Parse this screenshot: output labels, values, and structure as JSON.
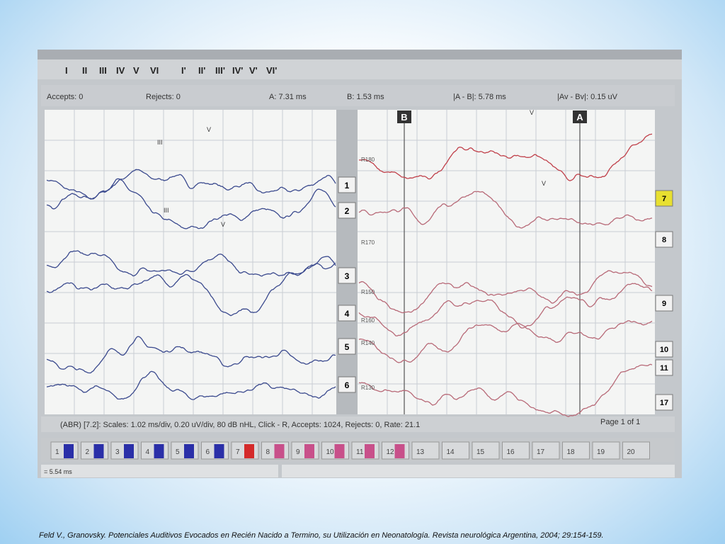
{
  "toolbar": {
    "buttons": [
      "I",
      "II",
      "III",
      "IV",
      "V",
      "VI",
      "I'",
      "II'",
      "III'",
      "IV'",
      "V'",
      "VI'"
    ]
  },
  "info_bar": {
    "accepts": "Accepts: 0",
    "rejects": "Rejects: 0",
    "a": "A: 7.31 ms",
    "b": "B: 1.53 ms",
    "a_minus_b": "|A - B|: 5.78 ms",
    "av_minus_bv": "|Av - Bv|: 0.15 uV"
  },
  "cursors": [
    "B",
    "A"
  ],
  "left_channels": [
    "1",
    "2",
    "3",
    "4",
    "5",
    "6"
  ],
  "right_channels": [
    "7",
    "8",
    "9",
    "10",
    "11",
    "17"
  ],
  "trace_labels": [
    "R180",
    "R170",
    "R150",
    "R160",
    "R140",
    "R130"
  ],
  "peak_labels": [
    "III",
    "V",
    "III",
    "V",
    "V",
    "V"
  ],
  "status": "(ABR) [7.2]: Scales: 1.02 ms/div, 0.20 uV/div, 80 dB nHL, Click - R, Accepts: 1024, Rejects: 0, Rate: 21.1",
  "page": "Page 1 of 1",
  "channel_buttons": [
    {
      "label": "1",
      "color": "#2a2fa8"
    },
    {
      "label": "2",
      "color": "#2a2fa8"
    },
    {
      "label": "3",
      "color": "#2a2fa8"
    },
    {
      "label": "4",
      "color": "#2a2fa8"
    },
    {
      "label": "5",
      "color": "#2a2fa8"
    },
    {
      "label": "6",
      "color": "#2a2fa8"
    },
    {
      "label": "7",
      "color": "#d42a2a"
    },
    {
      "label": "8",
      "color": "#c8508a"
    },
    {
      "label": "9",
      "color": "#c8508a"
    },
    {
      "label": "10",
      "color": "#c8508a"
    },
    {
      "label": "11",
      "color": "#c8508a"
    },
    {
      "label": "12",
      "color": "#c8508a"
    },
    {
      "label": "13"
    },
    {
      "label": "14"
    },
    {
      "label": "15"
    },
    {
      "label": "16"
    },
    {
      "label": "17"
    },
    {
      "label": "18"
    },
    {
      "label": "19"
    },
    {
      "label": "20"
    }
  ],
  "bottom_bar": "= 5.54 ms",
  "caption": "Feld V., Granovsky. Potenciales Auditivos Evocados en Recién Nacido a Termino, su Utilización en Neonatología.  Revista neurológica Argentina, 2004; 29:154-159."
}
